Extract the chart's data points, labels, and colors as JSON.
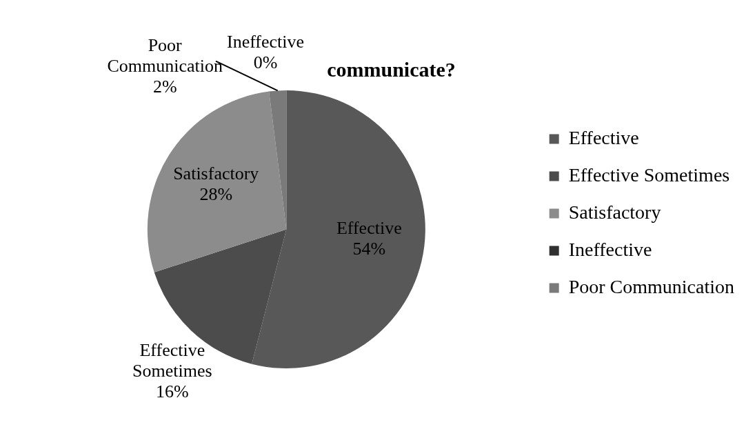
{
  "chart_data": {
    "type": "pie",
    "title": "communicate?",
    "categories": [
      "Effective",
      "Effective Sometimes",
      "Satisfactory",
      "Ineffective",
      "Poor Communication"
    ],
    "values": [
      54,
      16,
      28,
      0,
      2
    ],
    "value_labels": [
      "54%",
      "16%",
      "28%",
      "0%",
      "2%"
    ],
    "colors": [
      "#585858",
      "#4c4c4c",
      "#8c8c8c",
      "#303030",
      "#7a7a7a"
    ],
    "legend": "right"
  }
}
